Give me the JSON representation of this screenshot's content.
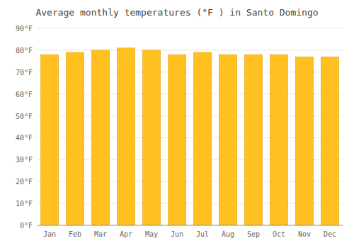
{
  "chart_data": {
    "type": "bar",
    "title": "Average monthly temperatures (°F ) in Santo Domingo",
    "categories": [
      "Jan",
      "Feb",
      "Mar",
      "Apr",
      "May",
      "Jun",
      "Jul",
      "Aug",
      "Sep",
      "Oct",
      "Nov",
      "Dec"
    ],
    "values": [
      78,
      79,
      80,
      81,
      80,
      78,
      79,
      78,
      78,
      78,
      77,
      77
    ],
    "color": "#FFC020",
    "ylim": [
      0,
      90
    ],
    "yticks": [
      {
        "value": 0,
        "label": "0°F"
      },
      {
        "value": 10,
        "label": "10°F"
      },
      {
        "value": 20,
        "label": "20°F"
      },
      {
        "value": 30,
        "label": "30°F"
      },
      {
        "value": 40,
        "label": "40°F"
      },
      {
        "value": 50,
        "label": "50°F"
      },
      {
        "value": 60,
        "label": "60°F"
      },
      {
        "value": 70,
        "label": "70°F"
      },
      {
        "value": 80,
        "label": "80°F"
      },
      {
        "value": 90,
        "label": "90°F"
      }
    ],
    "grid": true
  }
}
